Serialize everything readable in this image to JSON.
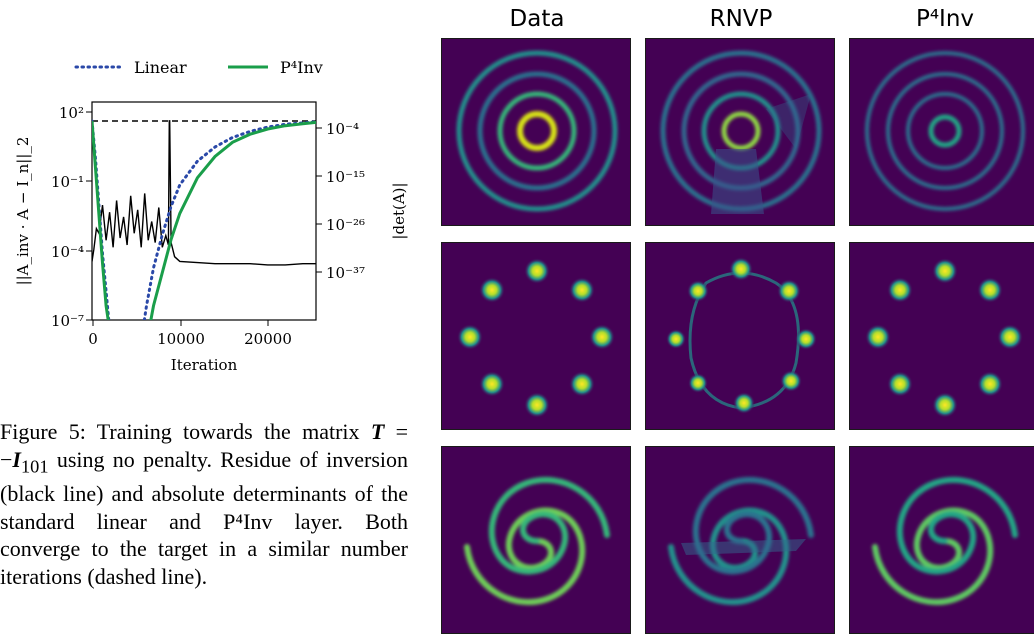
{
  "figure": {
    "legend": [
      {
        "label": "Linear",
        "color": "#2a48a8",
        "style": "dotted"
      },
      {
        "label": "P⁴Inv",
        "color": "#1a9e4a",
        "style": "solid"
      }
    ],
    "left_axis_label": "||A_inv · A − I_n||_2",
    "right_axis_label": "|det(A)|",
    "x_axis_label": "Iteration",
    "left_ticks": [
      "10²",
      "10⁻¹",
      "10⁻⁴",
      "10⁻⁷"
    ],
    "right_ticks": [
      "10⁻⁴",
      "10⁻¹⁵",
      "10⁻²⁶",
      "10⁻³⁷"
    ],
    "x_ticks": [
      "0",
      "10000",
      "20000"
    ]
  },
  "chart_data": {
    "type": "line",
    "title": "",
    "xlabel": "Iteration",
    "ylabel": "||A_inv · A − I_n||_2",
    "ylabel_right": "|det(A)|",
    "xlim": [
      0,
      25500
    ],
    "ylim_log10": [
      -7,
      2.3
    ],
    "y2lim_log10": [
      -42,
      4
    ],
    "target_log10_det": 0,
    "series": [
      {
        "name": "Linear",
        "axis": "right",
        "color": "#2a48a8",
        "dash": "dotted",
        "x": [
          0,
          400,
          800,
          1200,
          1600,
          2000,
          5800,
          6200,
          7000,
          8000,
          9000,
          10000,
          12000,
          14000,
          16000,
          18000,
          20000,
          22000,
          24000,
          25500
        ],
        "y_log10": [
          0,
          -8,
          -18,
          -28,
          -36,
          -44,
          -44,
          -39,
          -31,
          -24,
          -18,
          -13.5,
          -8.5,
          -5.5,
          -3.5,
          -2.2,
          -1.3,
          -0.7,
          -0.4,
          -0.2
        ]
      },
      {
        "name": "P⁴Inv",
        "axis": "right",
        "color": "#1a9e4a",
        "dash": "solid",
        "x": [
          0,
          400,
          800,
          1200,
          1600,
          2000,
          6500,
          7000,
          8000,
          9000,
          10000,
          12000,
          14000,
          16000,
          18000,
          20000,
          22000,
          24000,
          25500
        ],
        "y_log10": [
          0,
          -10,
          -20,
          -30,
          -39,
          -44,
          -44,
          -39,
          -32,
          -25,
          -19.5,
          -12,
          -7.5,
          -4.5,
          -2.8,
          -1.7,
          -1.0,
          -0.6,
          -0.3
        ]
      },
      {
        "name": "Residue",
        "axis": "left",
        "color": "#000000",
        "dash": "solid",
        "x": [
          0,
          200,
          500,
          800,
          1200,
          1600,
          2000,
          2400,
          2800,
          3200,
          3600,
          4000,
          4400,
          4800,
          5200,
          5600,
          6000,
          6400,
          6800,
          7200,
          7600,
          8000,
          8400,
          8700,
          8800,
          8850,
          9000,
          9400,
          10000,
          12000,
          14000,
          16000,
          18000,
          20000,
          22000,
          24000,
          25500
        ],
        "y_log10": [
          -4.5,
          -4.0,
          -3.1,
          -3.3,
          -2.1,
          -3.6,
          -2.4,
          -3.9,
          -1.9,
          -3.5,
          -2.6,
          -3.8,
          -1.7,
          -3.3,
          -2.3,
          -3.9,
          -1.6,
          -3.6,
          -2.8,
          -3.7,
          -2.2,
          -3.9,
          -3.4,
          -3.8,
          1.5,
          1.5,
          -3.7,
          -4.3,
          -4.5,
          -4.55,
          -4.6,
          -4.6,
          -4.6,
          -4.65,
          -4.65,
          -4.6,
          -4.6
        ]
      }
    ]
  },
  "caption": {
    "figure_label": "Figure 5:",
    "text_1": "Training towards the matrix",
    "text_2": "using no penalty. Residue of inversion (black line) and absolute determinants of the standard linear and P⁴Inv layer. Both converge to the target in a similar number iterations (dashed line)."
  },
  "grid": {
    "columns": [
      "Data",
      "RNVP",
      "P⁴Inv"
    ],
    "rows": [
      "rings",
      "gaussians",
      "spirals"
    ]
  }
}
